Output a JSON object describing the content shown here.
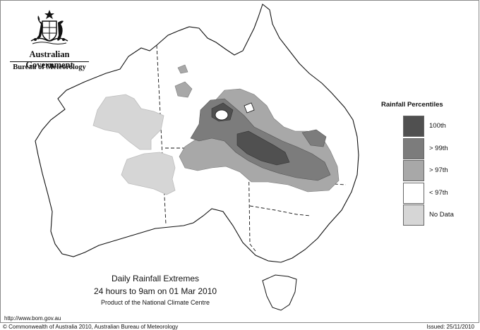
{
  "header": {
    "government_name": "Australian Government",
    "bureau_name": "Bureau of Meteorology"
  },
  "map": {
    "legend": {
      "title": "Rainfall Percentiles",
      "items": [
        {
          "label": "100th",
          "color": "#505050"
        },
        {
          "label": "> 99th",
          "color": "#7c7c7c"
        },
        {
          "label": "> 97th",
          "color": "#a8a8a8"
        },
        {
          "label": "< 97th",
          "color": "#ffffff"
        },
        {
          "label": "No Data",
          "color": "#d6d6d6"
        }
      ]
    },
    "caption": {
      "title": "Daily Rainfall Extremes",
      "period": "24 hours to 9am on 01 Mar 2010",
      "product": "Product of the National Climate Centre"
    }
  },
  "footer": {
    "url": "http://www.bom.gov.au",
    "copyright": "© Commonwealth of Australia 2010, Australian Bureau of Meteorology",
    "issued": "Issued: 25/11/2010"
  }
}
